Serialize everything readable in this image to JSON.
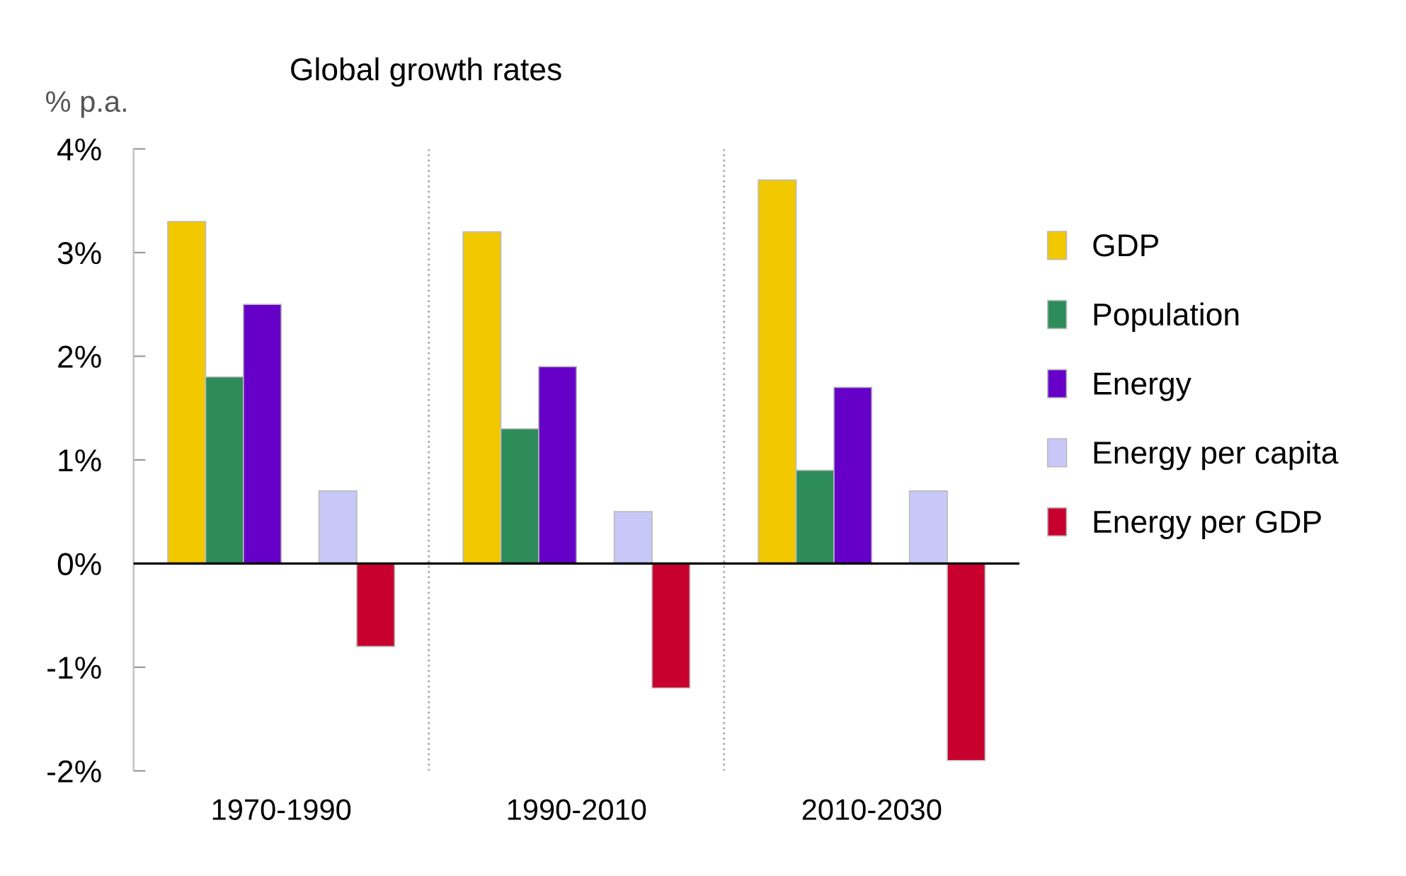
{
  "chart_data": {
    "type": "bar",
    "title": "Global growth rates",
    "ylabel": "% p.a.",
    "categories": [
      "1970-1990",
      "1990-2010",
      "2010-2030"
    ],
    "series": [
      {
        "name": "GDP",
        "color": "#f2c800",
        "values": [
          3.3,
          3.2,
          3.7
        ]
      },
      {
        "name": "Population",
        "color": "#2e8b5a",
        "values": [
          1.8,
          1.3,
          0.9
        ]
      },
      {
        "name": "Energy",
        "color": "#6600c8",
        "values": [
          2.5,
          1.9,
          1.7
        ]
      },
      {
        "name": "Energy per capita",
        "color": "#c8c8f8",
        "values": [
          0.7,
          0.5,
          0.7
        ]
      },
      {
        "name": "Energy per GDP",
        "color": "#c8002e",
        "values": [
          -0.8,
          -1.2,
          -1.9
        ]
      }
    ],
    "ylim": [
      -2,
      4
    ],
    "yticks": [
      {
        "value": -2,
        "label": "-2%"
      },
      {
        "value": -1,
        "label": "-1%"
      },
      {
        "value": 0,
        "label": "0%"
      },
      {
        "value": 1,
        "label": "1%"
      },
      {
        "value": 2,
        "label": "2%"
      },
      {
        "value": 3,
        "label": "3%"
      },
      {
        "value": 4,
        "label": "4%"
      }
    ],
    "grid": false,
    "legend": "right"
  }
}
